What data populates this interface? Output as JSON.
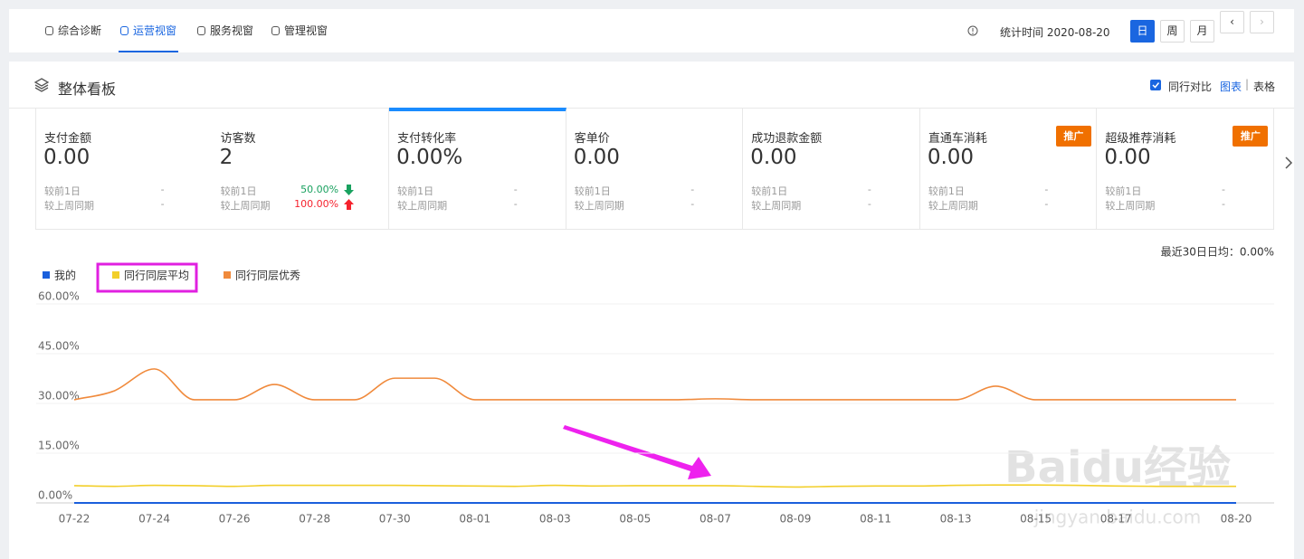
{
  "nav": {
    "tabs": [
      "综合诊断",
      "运营视窗",
      "服务视窗",
      "管理视窗"
    ],
    "active_tab": 1,
    "stat_time": "统计时间 2020-08-20",
    "period_buttons": [
      "日",
      "周",
      "月"
    ],
    "active_period": 0
  },
  "panel": {
    "title": "整体看板",
    "compare": "同行对比",
    "compare_checked": true,
    "view_chart": "图表",
    "view_sep": "|",
    "view_table": "表格",
    "active_metric": 2
  },
  "metrics": [
    {
      "title": "支付金额",
      "value": "0.00",
      "rows": [
        {
          "label": "较前1日",
          "value": "-"
        },
        {
          "label": "较上周同期",
          "value": "-"
        }
      ]
    },
    {
      "title": "访客数",
      "value": "2",
      "rows": [
        {
          "label": "较前1日",
          "value": "50.00%",
          "trend": "down"
        },
        {
          "label": "较上周同期",
          "value": "100.00%",
          "trend": "up"
        }
      ]
    },
    {
      "title": "支付转化率",
      "value": "0.00%",
      "rows": [
        {
          "label": "较前1日",
          "value": "-"
        },
        {
          "label": "较上周同期",
          "value": "-"
        }
      ]
    },
    {
      "title": "客单价",
      "value": "0.00",
      "rows": [
        {
          "label": "较前1日",
          "value": "-"
        },
        {
          "label": "较上周同期",
          "value": "-"
        }
      ]
    },
    {
      "title": "成功退款金额",
      "value": "0.00",
      "rows": [
        {
          "label": "较前1日",
          "value": "-"
        },
        {
          "label": "较上周同期",
          "value": "-"
        }
      ]
    },
    {
      "title": "直通车消耗",
      "value": "0.00",
      "badge": "推广",
      "rows": [
        {
          "label": "较前1日",
          "value": "-"
        },
        {
          "label": "较上周同期",
          "value": "-"
        }
      ]
    },
    {
      "title": "超级推荐消耗",
      "value": "0.00",
      "badge": "推广",
      "rows": [
        {
          "label": "较前1日",
          "value": "-"
        },
        {
          "label": "较上周同期",
          "value": "-"
        }
      ]
    }
  ],
  "chart_data": {
    "type": "line",
    "note": "最近30日日均：0.00%",
    "categories": [
      "07-22",
      null,
      "07-24",
      null,
      "07-26",
      null,
      "07-28",
      null,
      "07-30",
      null,
      "08-01",
      null,
      "08-03",
      null,
      "08-05",
      null,
      "08-07",
      null,
      "08-09",
      null,
      "08-11",
      null,
      "08-13",
      null,
      "08-15",
      null,
      "08-17",
      null,
      null,
      "08-20"
    ],
    "series": [
      {
        "name": "我的",
        "color": "#1a5fdc",
        "values": [
          0,
          0,
          0,
          0,
          0,
          0,
          0,
          0,
          0,
          0,
          0,
          0,
          0,
          0,
          0,
          0,
          0,
          0,
          0,
          0,
          0,
          0,
          0,
          0,
          0,
          0,
          0,
          0,
          0,
          0
        ]
      },
      {
        "name": "同行同层平均",
        "color": "#f2cf2a",
        "values": [
          5.2,
          5.0,
          5.3,
          5.2,
          5.0,
          5.3,
          5.3,
          5.3,
          5.3,
          5.2,
          5.1,
          5.0,
          5.3,
          5.1,
          5.2,
          5.2,
          5.2,
          5.0,
          4.8,
          5.0,
          5.1,
          5.1,
          5.3,
          5.4,
          5.4,
          5.3,
          5.1,
          5.0,
          5.0,
          5.0
        ]
      },
      {
        "name": "同行同层优秀",
        "color": "#f08a3c",
        "values": [
          31.1,
          33.8,
          40.4,
          31.1,
          31.1,
          35.7,
          31.1,
          31.1,
          37.6,
          37.6,
          31.1,
          31.1,
          31.1,
          31.1,
          31.1,
          31.1,
          31.4,
          31.1,
          31.1,
          31.1,
          31.1,
          31.1,
          31.1,
          35.2,
          31.1,
          31.1,
          31.1,
          31.1,
          31.1,
          31.1
        ]
      }
    ],
    "highlighted_series": 1,
    "ylim": [
      0,
      60
    ],
    "yticks": [
      {
        "value": 0,
        "label": "0.00%"
      },
      {
        "value": 15,
        "label": "15.00%"
      },
      {
        "value": 30,
        "label": "30.00%"
      },
      {
        "value": 45,
        "label": "45.00%"
      },
      {
        "value": 60,
        "label": "60.00%"
      }
    ],
    "grid": true
  },
  "watermark": {
    "logo": "Baidu经验",
    "url": "jingyan.baidu.com"
  }
}
